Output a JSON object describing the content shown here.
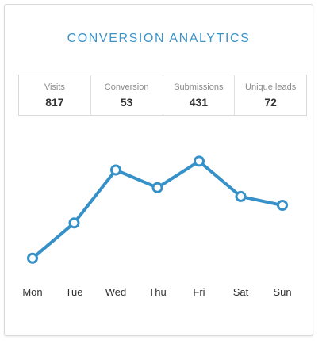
{
  "title": "CONVERSION ANALYTICS",
  "stats": [
    {
      "label": "Visits",
      "value": "817"
    },
    {
      "label": "Conversion",
      "value": "53"
    },
    {
      "label": "Submissions",
      "value": "431"
    },
    {
      "label": "Unique leads",
      "value": "72"
    }
  ],
  "colors": {
    "accent": "#3c93c8",
    "line": "#3591c8"
  },
  "chart_data": {
    "type": "line",
    "categories": [
      "Mon",
      "Tue",
      "Wed",
      "Thu",
      "Fri",
      "Sat",
      "Sun"
    ],
    "series": [
      {
        "values": [
          1,
          3,
          6,
          5,
          6.5,
          4.5,
          4
        ]
      }
    ],
    "ylim": [
      0,
      8
    ],
    "grid": false,
    "legend": "none",
    "title": "",
    "xlabel": "",
    "ylabel": ""
  }
}
